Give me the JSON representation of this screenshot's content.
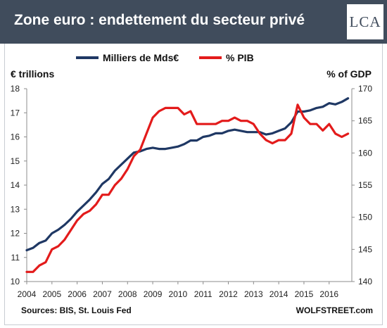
{
  "header": {
    "title": "Zone euro : endettement du secteur privé",
    "logo_text": "LCA",
    "background": "#404c5c"
  },
  "chart_data": {
    "type": "line",
    "left_axis_label": "€ trillions",
    "right_axis_label": "% of GDP",
    "left_ylim": [
      10,
      18
    ],
    "right_ylim": [
      140,
      170
    ],
    "left_ticks": [
      "10",
      "11",
      "12",
      "13",
      "14",
      "15",
      "16",
      "17",
      "18"
    ],
    "right_ticks": [
      "140",
      "145",
      "150",
      "155",
      "160",
      "165",
      "170"
    ],
    "x_ticks": [
      "2004",
      "2005",
      "2006",
      "2007",
      "2008",
      "2009",
      "2010",
      "2011",
      "2012",
      "2013",
      "2014",
      "2015",
      "2016"
    ],
    "xlim": [
      2004,
      2016.9
    ],
    "legend_position": "top",
    "grid": false,
    "series": [
      {
        "name": "Milliers de Mds€",
        "axis": "left",
        "color": "#1f3864",
        "x": [
          2004.0,
          2004.25,
          2004.5,
          2004.75,
          2005.0,
          2005.25,
          2005.5,
          2005.75,
          2006.0,
          2006.25,
          2006.5,
          2006.75,
          2007.0,
          2007.25,
          2007.5,
          2007.75,
          2008.0,
          2008.25,
          2008.5,
          2008.75,
          2009.0,
          2009.25,
          2009.5,
          2009.75,
          2010.0,
          2010.25,
          2010.5,
          2010.75,
          2011.0,
          2011.25,
          2011.5,
          2011.75,
          2012.0,
          2012.25,
          2012.5,
          2012.75,
          2013.0,
          2013.25,
          2013.5,
          2013.75,
          2014.0,
          2014.25,
          2014.5,
          2014.75,
          2015.0,
          2015.25,
          2015.5,
          2015.75,
          2016.0,
          2016.25,
          2016.5,
          2016.75
        ],
        "values": [
          11.3,
          11.4,
          11.6,
          11.7,
          12.0,
          12.15,
          12.35,
          12.6,
          12.9,
          13.15,
          13.4,
          13.7,
          14.05,
          14.25,
          14.6,
          14.85,
          15.1,
          15.35,
          15.4,
          15.5,
          15.55,
          15.5,
          15.5,
          15.55,
          15.6,
          15.7,
          15.85,
          15.85,
          16.0,
          16.05,
          16.15,
          16.15,
          16.25,
          16.3,
          16.25,
          16.2,
          16.2,
          16.2,
          16.1,
          16.15,
          16.25,
          16.35,
          16.6,
          17.05,
          17.05,
          17.1,
          17.2,
          17.25,
          17.4,
          17.35,
          17.45,
          17.6
        ]
      },
      {
        "name": "% PIB",
        "axis": "right",
        "color": "#e31b1b",
        "x": [
          2004.0,
          2004.25,
          2004.5,
          2004.75,
          2005.0,
          2005.25,
          2005.5,
          2005.75,
          2006.0,
          2006.25,
          2006.5,
          2006.75,
          2007.0,
          2007.25,
          2007.5,
          2007.75,
          2008.0,
          2008.25,
          2008.5,
          2008.75,
          2009.0,
          2009.25,
          2009.5,
          2009.75,
          2010.0,
          2010.25,
          2010.5,
          2010.75,
          2011.0,
          2011.25,
          2011.5,
          2011.75,
          2012.0,
          2012.25,
          2012.5,
          2012.75,
          2013.0,
          2013.25,
          2013.5,
          2013.75,
          2014.0,
          2014.25,
          2014.5,
          2014.75,
          2015.0,
          2015.25,
          2015.5,
          2015.75,
          2016.0,
          2016.25,
          2016.5,
          2016.75
        ],
        "values": [
          141.5,
          141.5,
          142.5,
          143.0,
          145.0,
          145.5,
          146.5,
          148.0,
          149.5,
          150.5,
          151.0,
          152.0,
          153.5,
          153.5,
          155.0,
          156.0,
          157.5,
          159.5,
          160.5,
          163.0,
          165.5,
          166.5,
          167.0,
          167.0,
          167.0,
          166.0,
          166.5,
          164.5,
          164.5,
          164.5,
          164.5,
          165.0,
          165.0,
          165.5,
          165.0,
          165.0,
          164.5,
          163.0,
          162.0,
          161.5,
          162.0,
          162.0,
          163.0,
          167.5,
          165.5,
          164.5,
          164.5,
          163.5,
          164.5,
          163.0,
          162.5,
          163.0
        ]
      }
    ]
  },
  "footer": {
    "sources": "Sources: BIS, St. Louis Fed",
    "credit": "WOLFSTREET.com"
  }
}
